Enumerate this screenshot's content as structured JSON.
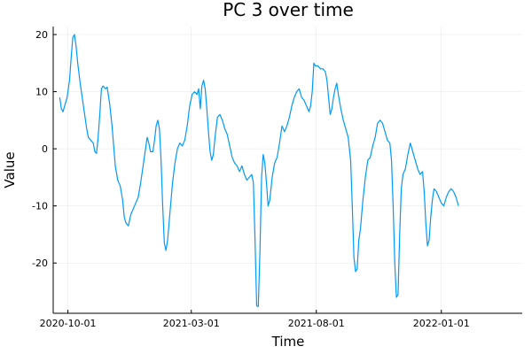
{
  "chart_data": {
    "type": "line",
    "title": "PC 3 over time",
    "xlabel": "Time",
    "ylabel": "Value",
    "xlim": [
      "2020-09-13",
      "2022-04-10"
    ],
    "ylim": [
      -28.8,
      21.4
    ],
    "x_ticks": [
      {
        "date": "2020-10-01",
        "label": "2020-10-01"
      },
      {
        "date": "2021-03-01",
        "label": "2021-03-01"
      },
      {
        "date": "2021-08-01",
        "label": "2021-08-01"
      },
      {
        "date": "2022-01-01",
        "label": "2022-01-01"
      }
    ],
    "y_ticks": [
      {
        "value": 20,
        "label": "20"
      },
      {
        "value": 10,
        "label": "10"
      },
      {
        "value": 0,
        "label": "0"
      },
      {
        "value": -10,
        "label": "-10"
      },
      {
        "value": -20,
        "label": "-20"
      }
    ],
    "grid": true,
    "legend": "none",
    "line_color": "#009af9",
    "series": [
      {
        "points": [
          [
            "2020-09-21",
            9.0
          ],
          [
            "2020-09-23",
            7.0
          ],
          [
            "2020-09-25",
            6.5
          ],
          [
            "2020-09-27",
            7.5
          ],
          [
            "2020-09-30",
            9.0
          ],
          [
            "2020-10-03",
            12.0
          ],
          [
            "2020-10-05",
            16.0
          ],
          [
            "2020-10-07",
            19.5
          ],
          [
            "2020-10-09",
            20.0
          ],
          [
            "2020-10-11",
            18.0
          ],
          [
            "2020-10-13",
            15.0
          ],
          [
            "2020-10-16",
            11.5
          ],
          [
            "2020-10-19",
            8.5
          ],
          [
            "2020-10-22",
            5.5
          ],
          [
            "2020-10-24",
            3.5
          ],
          [
            "2020-10-26",
            2.0
          ],
          [
            "2020-10-29",
            1.5
          ],
          [
            "2020-11-01",
            1.0
          ],
          [
            "2020-11-03",
            -0.5
          ],
          [
            "2020-11-05",
            -0.8
          ],
          [
            "2020-11-07",
            2.0
          ],
          [
            "2020-11-09",
            6.0
          ],
          [
            "2020-11-11",
            10.5
          ],
          [
            "2020-11-13",
            11.0
          ],
          [
            "2020-11-16",
            10.5
          ],
          [
            "2020-11-18",
            10.8
          ],
          [
            "2020-11-21",
            8.0
          ],
          [
            "2020-11-24",
            4.0
          ],
          [
            "2020-11-26",
            0.5
          ],
          [
            "2020-11-28",
            -3.0
          ],
          [
            "2020-12-01",
            -5.5
          ],
          [
            "2020-12-04",
            -6.5
          ],
          [
            "2020-12-07",
            -9.0
          ],
          [
            "2020-12-09",
            -12.0
          ],
          [
            "2020-12-11",
            -13.0
          ],
          [
            "2020-12-14",
            -13.5
          ],
          [
            "2020-12-17",
            -11.5
          ],
          [
            "2020-12-20",
            -10.5
          ],
          [
            "2020-12-23",
            -9.5
          ],
          [
            "2020-12-26",
            -8.5
          ],
          [
            "2020-12-29",
            -6.0
          ],
          [
            "2021-01-01",
            -3.0
          ],
          [
            "2021-01-04",
            0.0
          ],
          [
            "2021-01-06",
            2.0
          ],
          [
            "2021-01-08",
            1.0
          ],
          [
            "2021-01-10",
            -0.5
          ],
          [
            "2021-01-13",
            -0.5
          ],
          [
            "2021-01-15",
            1.5
          ],
          [
            "2021-01-17",
            4.0
          ],
          [
            "2021-01-19",
            5.0
          ],
          [
            "2021-01-21",
            3.5
          ],
          [
            "2021-01-23",
            -2.0
          ],
          [
            "2021-01-25",
            -10.0
          ],
          [
            "2021-01-27",
            -16.5
          ],
          [
            "2021-01-29",
            -17.8
          ],
          [
            "2021-01-31",
            -16.0
          ],
          [
            "2021-02-03",
            -11.0
          ],
          [
            "2021-02-06",
            -6.0
          ],
          [
            "2021-02-09",
            -2.5
          ],
          [
            "2021-02-12",
            0.0
          ],
          [
            "2021-02-15",
            1.0
          ],
          [
            "2021-02-18",
            0.5
          ],
          [
            "2021-02-21",
            1.5
          ],
          [
            "2021-02-24",
            4.0
          ],
          [
            "2021-02-27",
            7.5
          ],
          [
            "2021-03-02",
            9.5
          ],
          [
            "2021-03-05",
            10.0
          ],
          [
            "2021-03-08",
            9.5
          ],
          [
            "2021-03-10",
            10.5
          ],
          [
            "2021-03-12",
            7.0
          ],
          [
            "2021-03-14",
            11.0
          ],
          [
            "2021-03-16",
            12.0
          ],
          [
            "2021-03-18",
            10.5
          ],
          [
            "2021-03-20",
            7.0
          ],
          [
            "2021-03-22",
            3.0
          ],
          [
            "2021-03-24",
            -0.5
          ],
          [
            "2021-03-26",
            -2.0
          ],
          [
            "2021-03-28",
            -1.0
          ],
          [
            "2021-03-30",
            2.0
          ],
          [
            "2021-04-02",
            5.5
          ],
          [
            "2021-04-05",
            6.0
          ],
          [
            "2021-04-08",
            5.0
          ],
          [
            "2021-04-11",
            3.5
          ],
          [
            "2021-04-14",
            2.5
          ],
          [
            "2021-04-17",
            0.5
          ],
          [
            "2021-04-20",
            -1.5
          ],
          [
            "2021-04-23",
            -2.5
          ],
          [
            "2021-04-26",
            -3.0
          ],
          [
            "2021-04-29",
            -4.0
          ],
          [
            "2021-05-02",
            -3.0
          ],
          [
            "2021-05-05",
            -4.5
          ],
          [
            "2021-05-08",
            -5.5
          ],
          [
            "2021-05-11",
            -5.0
          ],
          [
            "2021-05-14",
            -4.5
          ],
          [
            "2021-05-16",
            -6.0
          ],
          [
            "2021-05-18",
            -16.0
          ],
          [
            "2021-05-20",
            -27.5
          ],
          [
            "2021-05-22",
            -27.6
          ],
          [
            "2021-05-24",
            -18.0
          ],
          [
            "2021-05-26",
            -5.0
          ],
          [
            "2021-05-28",
            -1.0
          ],
          [
            "2021-05-30",
            -2.5
          ],
          [
            "2021-06-01",
            -6.0
          ],
          [
            "2021-06-03",
            -10.0
          ],
          [
            "2021-06-05",
            -9.0
          ],
          [
            "2021-06-08",
            -5.0
          ],
          [
            "2021-06-11",
            -2.5
          ],
          [
            "2021-06-14",
            -1.5
          ],
          [
            "2021-06-17",
            1.0
          ],
          [
            "2021-06-20",
            4.0
          ],
          [
            "2021-06-23",
            3.0
          ],
          [
            "2021-06-26",
            4.0
          ],
          [
            "2021-06-29",
            5.5
          ],
          [
            "2021-07-02",
            7.5
          ],
          [
            "2021-07-05",
            9.0
          ],
          [
            "2021-07-08",
            10.0
          ],
          [
            "2021-07-11",
            10.5
          ],
          [
            "2021-07-14",
            9.0
          ],
          [
            "2021-07-17",
            8.5
          ],
          [
            "2021-07-20",
            7.5
          ],
          [
            "2021-07-23",
            6.5
          ],
          [
            "2021-07-25",
            7.5
          ],
          [
            "2021-07-27",
            10.0
          ],
          [
            "2021-07-29",
            15.0
          ],
          [
            "2021-07-31",
            14.5
          ],
          [
            "2021-08-03",
            14.5
          ],
          [
            "2021-08-06",
            14.0
          ],
          [
            "2021-08-09",
            14.0
          ],
          [
            "2021-08-12",
            13.5
          ],
          [
            "2021-08-14",
            12.0
          ],
          [
            "2021-08-16",
            9.0
          ],
          [
            "2021-08-18",
            6.0
          ],
          [
            "2021-08-20",
            7.0
          ],
          [
            "2021-08-22",
            9.0
          ],
          [
            "2021-08-24",
            10.5
          ],
          [
            "2021-08-26",
            11.5
          ],
          [
            "2021-08-28",
            9.5
          ],
          [
            "2021-08-31",
            7.0
          ],
          [
            "2021-09-03",
            5.0
          ],
          [
            "2021-09-06",
            3.5
          ],
          [
            "2021-09-09",
            2.0
          ],
          [
            "2021-09-12",
            -2.0
          ],
          [
            "2021-09-14",
            -10.0
          ],
          [
            "2021-09-16",
            -19.0
          ],
          [
            "2021-09-18",
            -21.5
          ],
          [
            "2021-09-20",
            -21.0
          ],
          [
            "2021-09-22",
            -16.0
          ],
          [
            "2021-09-24",
            -14.0
          ],
          [
            "2021-09-27",
            -9.0
          ],
          [
            "2021-09-30",
            -5.0
          ],
          [
            "2021-10-03",
            -2.0
          ],
          [
            "2021-10-06",
            -1.5
          ],
          [
            "2021-10-09",
            0.5
          ],
          [
            "2021-10-12",
            2.0
          ],
          [
            "2021-10-15",
            4.5
          ],
          [
            "2021-10-18",
            5.0
          ],
          [
            "2021-10-21",
            4.5
          ],
          [
            "2021-10-24",
            3.0
          ],
          [
            "2021-10-27",
            1.5
          ],
          [
            "2021-10-30",
            1.0
          ],
          [
            "2021-11-01",
            -2.0
          ],
          [
            "2021-11-03",
            -10.0
          ],
          [
            "2021-11-05",
            -20.0
          ],
          [
            "2021-11-07",
            -26.0
          ],
          [
            "2021-11-09",
            -25.5
          ],
          [
            "2021-11-11",
            -15.0
          ],
          [
            "2021-11-13",
            -7.0
          ],
          [
            "2021-11-15",
            -4.5
          ],
          [
            "2021-11-18",
            -3.5
          ],
          [
            "2021-11-21",
            -1.0
          ],
          [
            "2021-11-24",
            1.0
          ],
          [
            "2021-11-27",
            -0.5
          ],
          [
            "2021-11-30",
            -2.0
          ],
          [
            "2021-12-03",
            -3.5
          ],
          [
            "2021-12-06",
            -4.5
          ],
          [
            "2021-12-09",
            -4.0
          ],
          [
            "2021-12-11",
            -7.5
          ],
          [
            "2021-12-13",
            -13.0
          ],
          [
            "2021-12-15",
            -17.0
          ],
          [
            "2021-12-17",
            -16.0
          ],
          [
            "2021-12-19",
            -12.0
          ],
          [
            "2021-12-21",
            -9.0
          ],
          [
            "2021-12-23",
            -7.0
          ],
          [
            "2021-12-26",
            -7.5
          ],
          [
            "2021-12-29",
            -8.5
          ],
          [
            "2022-01-01",
            -9.5
          ],
          [
            "2022-01-04",
            -10.0
          ],
          [
            "2022-01-07",
            -8.5
          ],
          [
            "2022-01-10",
            -7.5
          ],
          [
            "2022-01-13",
            -7.0
          ],
          [
            "2022-01-16",
            -7.5
          ],
          [
            "2022-01-19",
            -8.5
          ],
          [
            "2022-01-22",
            -10.0
          ]
        ]
      }
    ]
  }
}
